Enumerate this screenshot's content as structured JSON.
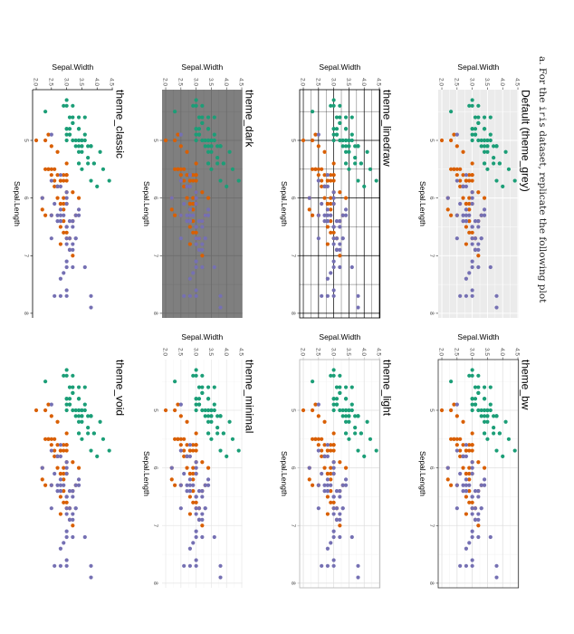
{
  "heading": {
    "prefix": "a. For the ",
    "code": "iris",
    "suffix": " dataset, replicate the following plot"
  },
  "chart_data": {
    "type": "scatter",
    "xlabel": "Sepal.Length",
    "ylabel": "Sepal.Width",
    "xticks": [
      "5",
      "6",
      "7",
      "8"
    ],
    "yticks": [
      "2.0",
      "2.5",
      "3.0",
      "3.5",
      "4.0",
      "4.5"
    ],
    "xlim": [
      4.3,
      7.9
    ],
    "ylim": [
      2.0,
      4.4
    ],
    "legend": "none",
    "colors": [
      "#1b9e77",
      "#d95f02",
      "#7570b3"
    ],
    "panels": [
      {
        "title": "Default (theme_grey)",
        "theme": "grey"
      },
      {
        "title": "theme_bw",
        "theme": "bw"
      },
      {
        "title": "theme_linedraw",
        "theme": "linedraw"
      },
      {
        "title": "theme_light",
        "theme": "light"
      },
      {
        "title": "theme_dark",
        "theme": "dark"
      },
      {
        "title": "theme_minimal",
        "theme": "minimal"
      },
      {
        "title": "theme_classic",
        "theme": "classic"
      },
      {
        "title": "theme_void",
        "theme": "void"
      }
    ],
    "series": [
      {
        "color": "#1b9e77",
        "points": [
          [
            5.1,
            3.5
          ],
          [
            4.9,
            3.0
          ],
          [
            4.7,
            3.2
          ],
          [
            4.6,
            3.1
          ],
          [
            5.0,
            3.6
          ],
          [
            5.4,
            3.9
          ],
          [
            4.6,
            3.4
          ],
          [
            5.0,
            3.4
          ],
          [
            4.4,
            2.9
          ],
          [
            4.9,
            3.1
          ],
          [
            5.4,
            3.7
          ],
          [
            4.8,
            3.4
          ],
          [
            4.8,
            3.0
          ],
          [
            4.3,
            3.0
          ],
          [
            5.8,
            4.0
          ],
          [
            5.7,
            4.4
          ],
          [
            5.4,
            3.9
          ],
          [
            5.1,
            3.5
          ],
          [
            5.7,
            3.8
          ],
          [
            5.1,
            3.8
          ],
          [
            5.4,
            3.4
          ],
          [
            5.1,
            3.7
          ],
          [
            4.6,
            3.6
          ],
          [
            5.1,
            3.3
          ],
          [
            4.8,
            3.4
          ],
          [
            5.0,
            3.0
          ],
          [
            5.0,
            3.4
          ],
          [
            5.2,
            3.5
          ],
          [
            5.2,
            3.4
          ],
          [
            4.7,
            3.2
          ],
          [
            4.8,
            3.1
          ],
          [
            5.4,
            3.4
          ],
          [
            5.2,
            4.1
          ],
          [
            5.5,
            4.2
          ],
          [
            4.9,
            3.1
          ],
          [
            5.0,
            3.2
          ],
          [
            5.5,
            3.5
          ],
          [
            4.9,
            3.6
          ],
          [
            4.4,
            3.0
          ],
          [
            5.1,
            3.4
          ],
          [
            5.0,
            3.5
          ],
          [
            4.5,
            2.3
          ],
          [
            4.4,
            3.2
          ],
          [
            5.0,
            3.5
          ],
          [
            5.1,
            3.8
          ],
          [
            4.8,
            3.0
          ],
          [
            5.1,
            3.8
          ],
          [
            4.6,
            3.2
          ],
          [
            5.3,
            3.7
          ],
          [
            5.0,
            3.3
          ]
        ]
      },
      {
        "color": "#d95f02",
        "points": [
          [
            7.0,
            3.2
          ],
          [
            6.4,
            3.2
          ],
          [
            6.9,
            3.1
          ],
          [
            5.5,
            2.3
          ],
          [
            6.5,
            2.8
          ],
          [
            5.7,
            2.8
          ],
          [
            6.3,
            3.3
          ],
          [
            4.9,
            2.4
          ],
          [
            6.6,
            2.9
          ],
          [
            5.2,
            2.7
          ],
          [
            5.0,
            2.0
          ],
          [
            5.9,
            3.0
          ],
          [
            6.0,
            2.2
          ],
          [
            6.1,
            2.9
          ],
          [
            5.6,
            2.9
          ],
          [
            6.7,
            3.1
          ],
          [
            5.6,
            3.0
          ],
          [
            5.8,
            2.7
          ],
          [
            6.2,
            2.2
          ],
          [
            5.6,
            2.5
          ],
          [
            5.9,
            3.2
          ],
          [
            6.1,
            2.8
          ],
          [
            6.3,
            2.5
          ],
          [
            6.1,
            2.8
          ],
          [
            6.4,
            2.9
          ],
          [
            6.6,
            3.0
          ],
          [
            6.8,
            2.8
          ],
          [
            6.7,
            3.0
          ],
          [
            6.0,
            2.9
          ],
          [
            5.7,
            2.6
          ],
          [
            5.5,
            2.4
          ],
          [
            5.5,
            2.4
          ],
          [
            5.8,
            2.7
          ],
          [
            6.0,
            2.7
          ],
          [
            5.4,
            3.0
          ],
          [
            6.0,
            3.4
          ],
          [
            6.7,
            3.1
          ],
          [
            6.3,
            2.3
          ],
          [
            5.6,
            3.0
          ],
          [
            5.5,
            2.5
          ],
          [
            5.5,
            2.6
          ],
          [
            6.1,
            3.0
          ],
          [
            5.8,
            2.6
          ],
          [
            5.0,
            2.3
          ],
          [
            5.6,
            2.7
          ],
          [
            5.7,
            3.0
          ],
          [
            5.7,
            2.9
          ],
          [
            6.2,
            2.9
          ],
          [
            5.1,
            2.5
          ],
          [
            5.7,
            2.8
          ]
        ]
      },
      {
        "color": "#7570b3",
        "points": [
          [
            6.3,
            3.3
          ],
          [
            5.8,
            2.7
          ],
          [
            7.1,
            3.0
          ],
          [
            6.3,
            2.9
          ],
          [
            6.5,
            3.0
          ],
          [
            7.6,
            3.0
          ],
          [
            4.9,
            2.5
          ],
          [
            7.3,
            2.9
          ],
          [
            6.7,
            2.5
          ],
          [
            7.2,
            3.6
          ],
          [
            6.5,
            3.2
          ],
          [
            6.4,
            2.7
          ],
          [
            6.8,
            3.0
          ],
          [
            5.7,
            2.5
          ],
          [
            5.8,
            2.8
          ],
          [
            6.4,
            3.2
          ],
          [
            6.5,
            3.0
          ],
          [
            7.7,
            3.8
          ],
          [
            7.7,
            2.6
          ],
          [
            6.0,
            2.2
          ],
          [
            6.9,
            3.2
          ],
          [
            5.6,
            2.8
          ],
          [
            7.7,
            2.8
          ],
          [
            6.3,
            2.7
          ],
          [
            6.7,
            3.3
          ],
          [
            7.2,
            3.2
          ],
          [
            6.2,
            2.8
          ],
          [
            6.1,
            3.0
          ],
          [
            6.4,
            2.8
          ],
          [
            7.2,
            3.0
          ],
          [
            7.4,
            2.8
          ],
          [
            7.9,
            3.8
          ],
          [
            6.4,
            2.8
          ],
          [
            6.3,
            2.8
          ],
          [
            6.1,
            2.6
          ],
          [
            7.7,
            3.0
          ],
          [
            6.3,
            3.4
          ],
          [
            6.4,
            3.1
          ],
          [
            6.0,
            3.0
          ],
          [
            6.9,
            3.1
          ],
          [
            6.7,
            3.1
          ],
          [
            6.9,
            3.1
          ],
          [
            5.8,
            2.7
          ],
          [
            6.8,
            3.2
          ],
          [
            6.7,
            3.3
          ],
          [
            6.7,
            3.0
          ],
          [
            6.3,
            2.5
          ],
          [
            6.5,
            3.0
          ],
          [
            6.2,
            3.4
          ],
          [
            5.9,
            3.0
          ]
        ]
      }
    ]
  }
}
